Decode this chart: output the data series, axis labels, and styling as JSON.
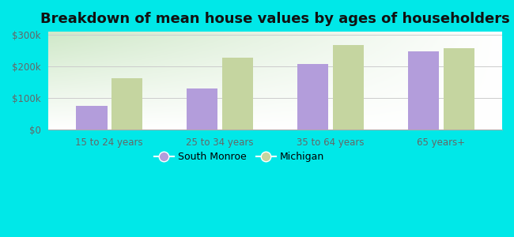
{
  "title": "Breakdown of mean house values by ages of householders",
  "categories": [
    "15 to 24 years",
    "25 to 34 years",
    "35 to 64 years",
    "65 years+"
  ],
  "south_monroe": [
    75000,
    130000,
    208000,
    248000
  ],
  "michigan": [
    163000,
    228000,
    268000,
    258000
  ],
  "south_monroe_color": "#b39ddb",
  "michigan_color": "#c5d5a0",
  "background_color": "#00e8e8",
  "grad_color_topleft": "#e8f5e0",
  "grad_color_bottomright": "#ffffff",
  "ylabel_ticks": [
    0,
    100000,
    200000,
    300000
  ],
  "ylabel_labels": [
    "$0",
    "$100k",
    "$200k",
    "$300k"
  ],
  "ylim": [
    0,
    310000
  ],
  "legend_south_monroe": "South Monroe",
  "legend_michigan": "Michigan",
  "bar_width": 0.28,
  "title_fontsize": 13,
  "tick_fontsize": 8.5,
  "legend_fontsize": 9
}
